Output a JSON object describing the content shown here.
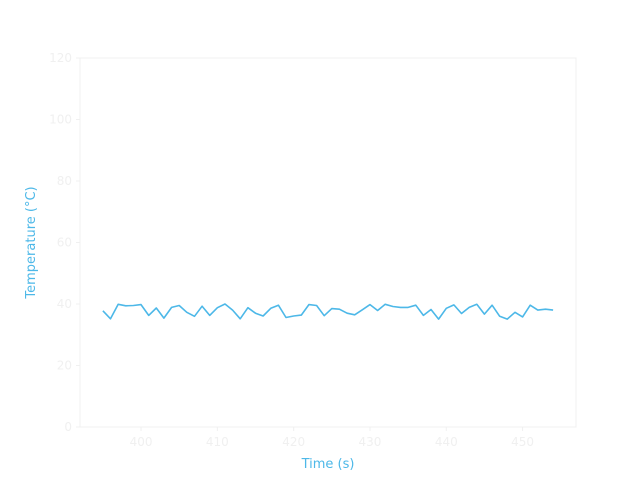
{
  "chart_data": {
    "type": "line",
    "title": "",
    "xlabel": "Time (s)",
    "ylabel": "Temperature (°C)",
    "xlim": [
      392,
      457
    ],
    "ylim": [
      0,
      120
    ],
    "x_ticks": [
      400,
      410,
      420,
      430,
      440,
      450
    ],
    "y_ticks": [
      0,
      20,
      40,
      60,
      80,
      100,
      120
    ],
    "grid": false,
    "colors": {
      "line": "#4db8e8",
      "axis": "#f0f0f0",
      "tick_text": "#f0f0f0",
      "label_text": "#4db8e8"
    },
    "series": [
      {
        "x": [
          395,
          396,
          397,
          398,
          399,
          400,
          401,
          402,
          403,
          404,
          405,
          406,
          407,
          408,
          409,
          410,
          411,
          412,
          413,
          414,
          415,
          416,
          417,
          418,
          419,
          420,
          421,
          422,
          423,
          424,
          425,
          426,
          427,
          428,
          429,
          430,
          431,
          432,
          433,
          434,
          435,
          436,
          437,
          438,
          439,
          440,
          441,
          442,
          443,
          444,
          445,
          446,
          447,
          448,
          449,
          450,
          451,
          452,
          453,
          454
        ],
        "values": [
          37.8,
          35.2,
          39.9,
          39.4,
          39.5,
          39.8,
          36.3,
          38.7,
          35.4,
          38.9,
          39.5,
          37.3,
          36.0,
          39.3,
          36.3,
          38.8,
          40.0,
          38.0,
          35.2,
          38.8,
          37.0,
          36.1,
          38.6,
          39.6,
          35.6,
          36.1,
          36.4,
          39.8,
          39.5,
          36.2,
          38.5,
          38.3,
          37.0,
          36.5,
          38.1,
          39.8,
          37.9,
          39.9,
          39.2,
          38.9,
          38.9,
          39.6,
          36.3,
          38.2,
          35.1,
          38.6,
          39.7,
          36.9,
          38.9,
          39.9,
          36.7,
          39.6,
          36.0,
          35.1,
          37.3,
          35.8,
          39.6,
          38.0,
          38.3,
          38.0
        ]
      }
    ]
  }
}
